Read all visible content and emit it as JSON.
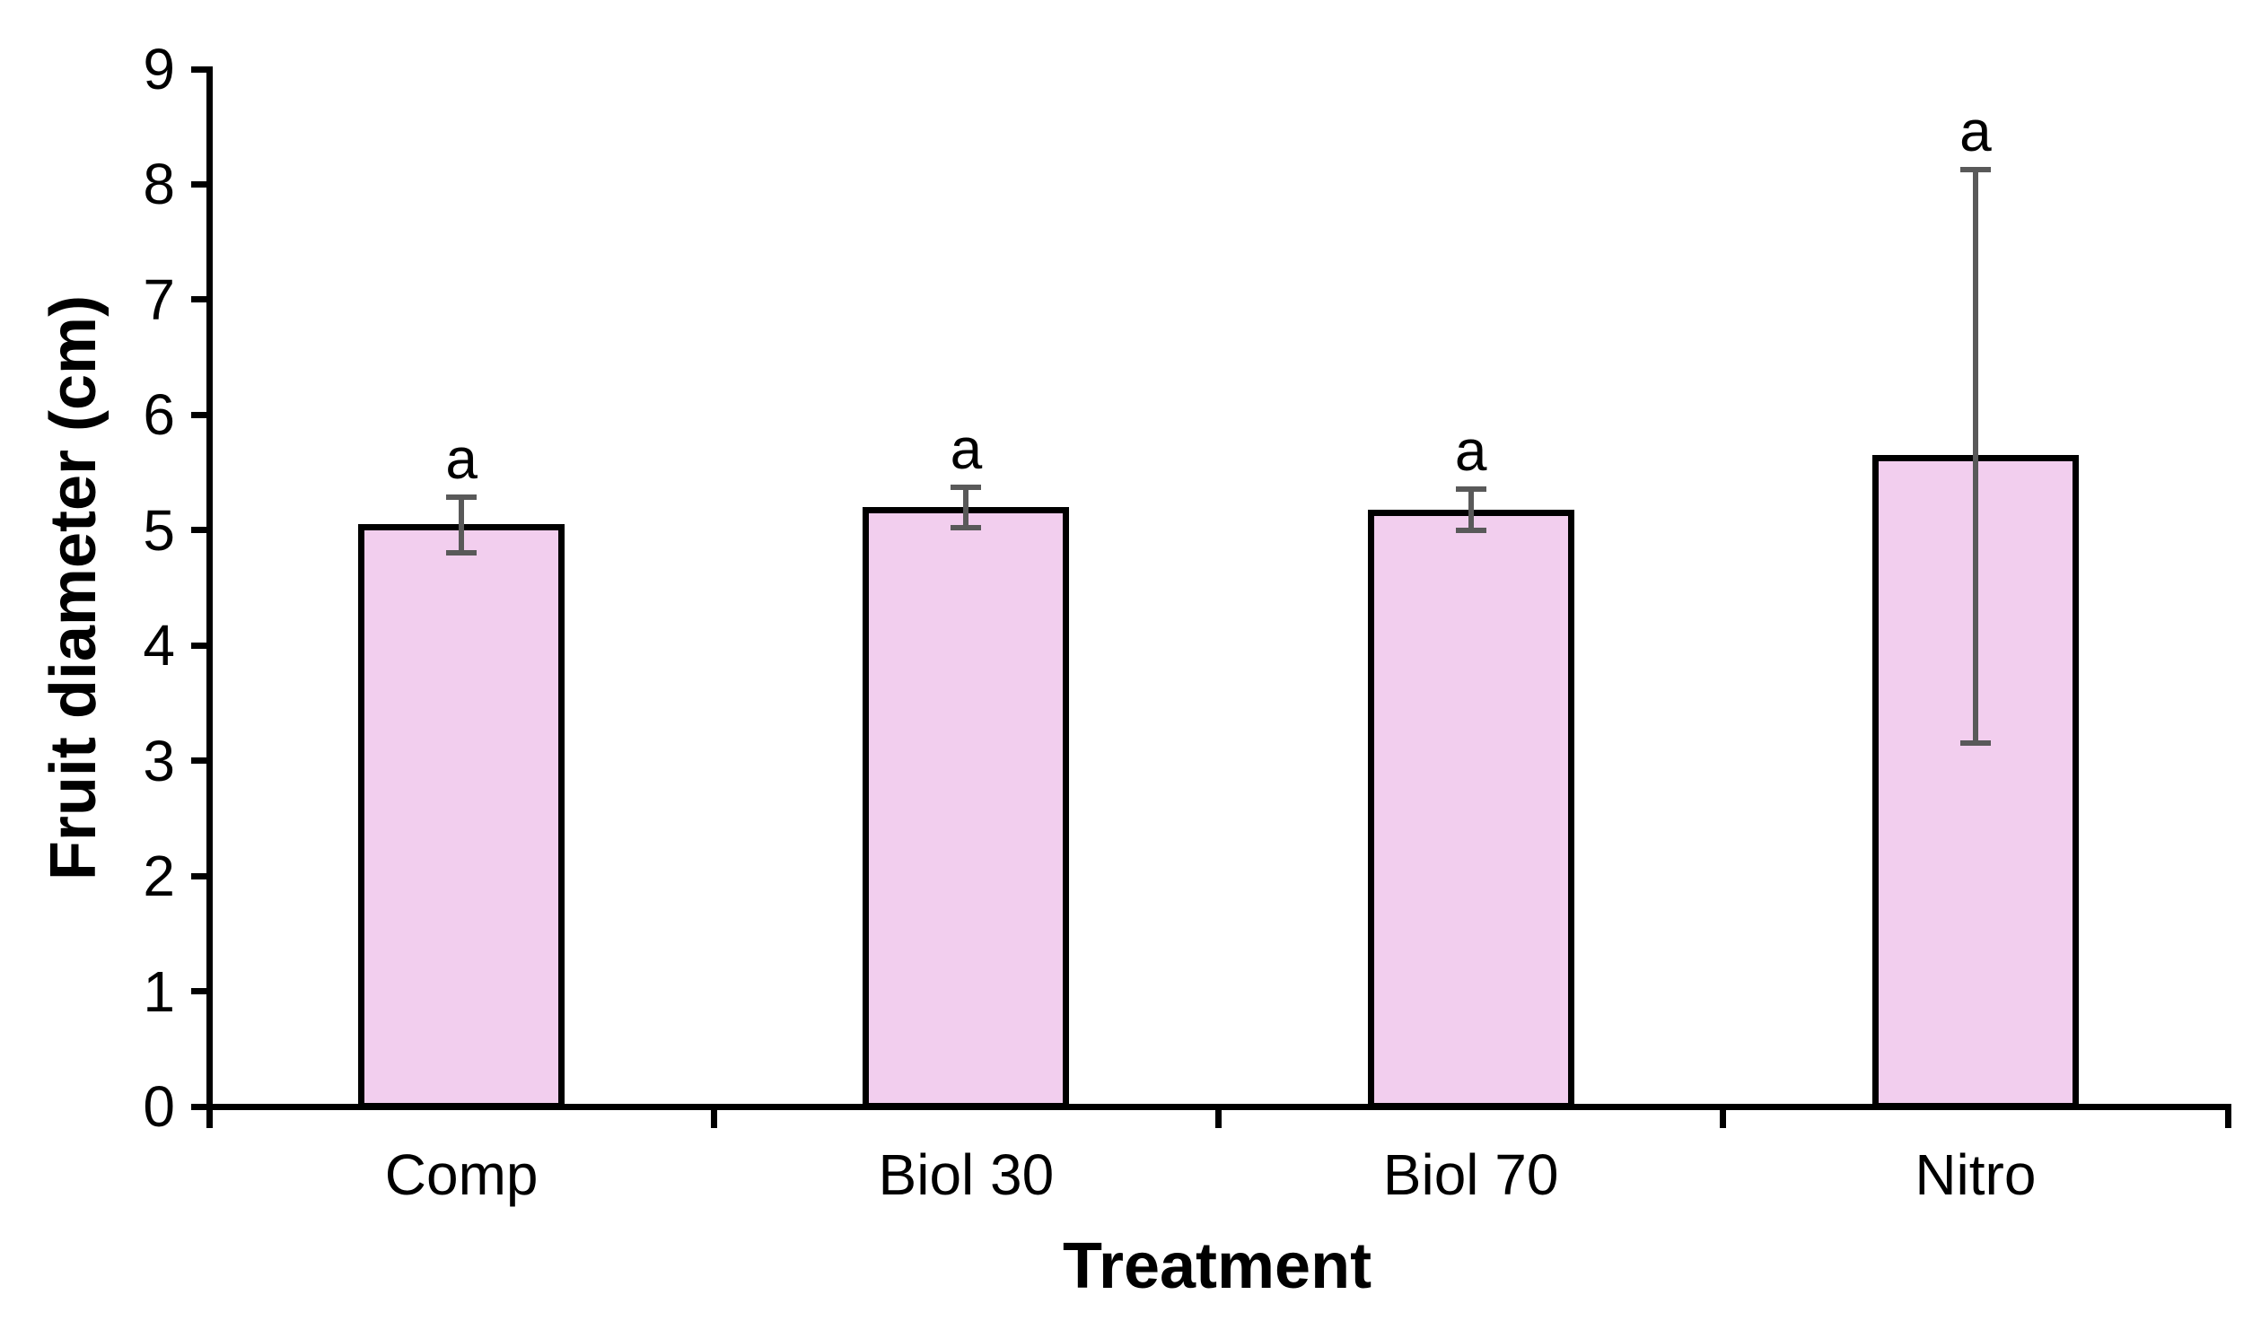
{
  "figure": {
    "background": "#FFFFFF"
  },
  "chart_data": {
    "type": "bar",
    "title": "",
    "xlabel": "Treatment",
    "ylabel": "Fruit diameter (cm)",
    "categories": [
      "Comp",
      "Biol 30",
      "Biol 70",
      "Nitro"
    ],
    "values": [
      5.05,
      5.2,
      5.18,
      5.65
    ],
    "error_low": [
      4.8,
      5.02,
      5.0,
      3.15
    ],
    "error_high": [
      5.29,
      5.37,
      5.36,
      8.13
    ],
    "sig_labels": [
      "a",
      "a",
      "a",
      "a"
    ],
    "ylim": [
      0,
      9
    ],
    "yticks": [
      0,
      1,
      2,
      3,
      4,
      5,
      6,
      7,
      8,
      9
    ],
    "grid": false,
    "legend": false,
    "colors": {
      "bar_fill": "#F2CEEE",
      "bar_border": "#000000",
      "error_bar": "#595959",
      "axis": "#000000",
      "text": "#000000"
    }
  }
}
